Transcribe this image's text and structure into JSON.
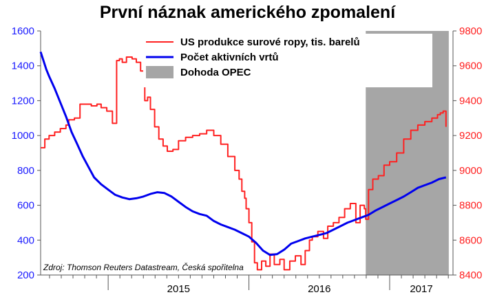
{
  "chart_data": {
    "type": "line",
    "title": "První náznak amerického zpomalení",
    "source": "Zdroj: Thomson Reuters Datastream, Česká spořitelna",
    "x_ticks": [
      "2015",
      "2016",
      "2017"
    ],
    "y_left": {
      "ticks": [
        200,
        400,
        600,
        800,
        1000,
        1200,
        1400,
        1600
      ],
      "range": [
        200,
        1600
      ],
      "color": "#1a1aff"
    },
    "y_right": {
      "ticks": [
        8400,
        8600,
        8800,
        9000,
        9200,
        9400,
        9600,
        9800
      ],
      "range": [
        8400,
        9800
      ],
      "color": "#ff2020"
    },
    "x_range": [
      2014.52,
      2017.45
    ],
    "grid": false,
    "legend_position": "top-right",
    "shaded_region": {
      "name": "Dohoda OPEC",
      "x_start": 2016.83,
      "x_end": 2017.42,
      "color": "#a6a6a6"
    },
    "series": [
      {
        "name": "US produkce surové ropy, tis. barelů",
        "axis": "right",
        "color": "#ff2020",
        "step": true,
        "x": [
          2014.52,
          2014.55,
          2014.58,
          2014.62,
          2014.66,
          2014.7,
          2014.72,
          2014.76,
          2014.8,
          2014.84,
          2014.88,
          2014.92,
          2014.95,
          2014.99,
          2015.03,
          2015.06,
          2015.08,
          2015.1,
          2015.13,
          2015.17,
          2015.2,
          2015.23,
          2015.26,
          2015.28,
          2015.3,
          2015.33,
          2015.36,
          2015.39,
          2015.42,
          2015.46,
          2015.5,
          2015.55,
          2015.6,
          2015.65,
          2015.7,
          2015.75,
          2015.8,
          2015.85,
          2015.9,
          2015.93,
          2015.95,
          2015.97,
          2015.98,
          2016.0,
          2016.02,
          2016.04,
          2016.06,
          2016.09,
          2016.12,
          2016.15,
          2016.18,
          2016.22,
          2016.25,
          2016.29,
          2016.33,
          2016.37,
          2016.4,
          2016.43,
          2016.45,
          2016.49,
          2016.53,
          2016.56,
          2016.6,
          2016.64,
          2016.68,
          2016.72,
          2016.76,
          2016.79,
          2016.82,
          2016.83,
          2016.85,
          2016.88,
          2016.92,
          2016.96,
          2017.0,
          2017.05,
          2017.1,
          2017.15,
          2017.2,
          2017.25,
          2017.3,
          2017.34,
          2017.36,
          2017.38,
          2017.4
        ],
        "values": [
          9130,
          9180,
          9200,
          9220,
          9240,
          9260,
          9290,
          9300,
          9380,
          9380,
          9370,
          9380,
          9360,
          9340,
          9270,
          9630,
          9640,
          9620,
          9650,
          9640,
          9620,
          9570,
          9400,
          9420,
          9350,
          9250,
          9180,
          9140,
          9110,
          9120,
          9170,
          9190,
          9200,
          9210,
          9230,
          9200,
          9150,
          9080,
          9000,
          8950,
          8880,
          8840,
          8780,
          8700,
          8590,
          8470,
          8430,
          8480,
          8450,
          8520,
          8460,
          8490,
          8430,
          8480,
          8510,
          8460,
          8540,
          8600,
          8620,
          8650,
          8610,
          8680,
          8700,
          8730,
          8780,
          8810,
          8700,
          8800,
          8780,
          8720,
          8890,
          8950,
          8970,
          9030,
          9050,
          9100,
          9180,
          9230,
          9260,
          9280,
          9300,
          9320,
          9330,
          9340,
          9250
        ]
      },
      {
        "name": "Počet aktivních vrtů",
        "axis": "left",
        "color": "#0000ee",
        "step": false,
        "x": [
          2014.52,
          2014.54,
          2014.56,
          2014.58,
          2014.62,
          2014.66,
          2014.7,
          2014.74,
          2014.78,
          2014.82,
          2014.86,
          2014.9,
          2014.95,
          2015.0,
          2015.05,
          2015.1,
          2015.15,
          2015.2,
          2015.25,
          2015.3,
          2015.35,
          2015.4,
          2015.45,
          2015.5,
          2015.55,
          2015.6,
          2015.65,
          2015.7,
          2015.75,
          2015.8,
          2015.85,
          2015.9,
          2015.95,
          2016.0,
          2016.05,
          2016.1,
          2016.15,
          2016.2,
          2016.25,
          2016.3,
          2016.35,
          2016.4,
          2016.45,
          2016.5,
          2016.55,
          2016.6,
          2016.65,
          2016.7,
          2016.75,
          2016.8,
          2016.85,
          2016.9,
          2016.95,
          2017.0,
          2017.05,
          2017.1,
          2017.15,
          2017.2,
          2017.25,
          2017.3,
          2017.35,
          2017.4
        ],
        "values": [
          1480,
          1430,
          1380,
          1340,
          1270,
          1190,
          1110,
          1020,
          950,
          880,
          820,
          760,
          720,
          690,
          660,
          645,
          635,
          640,
          650,
          665,
          675,
          670,
          650,
          620,
          590,
          565,
          550,
          540,
          510,
          490,
          475,
          460,
          440,
          420,
          385,
          340,
          315,
          320,
          345,
          380,
          395,
          410,
          420,
          430,
          440,
          460,
          480,
          500,
          515,
          530,
          545,
          570,
          590,
          610,
          630,
          650,
          675,
          700,
          715,
          730,
          750,
          760
        ]
      }
    ]
  }
}
